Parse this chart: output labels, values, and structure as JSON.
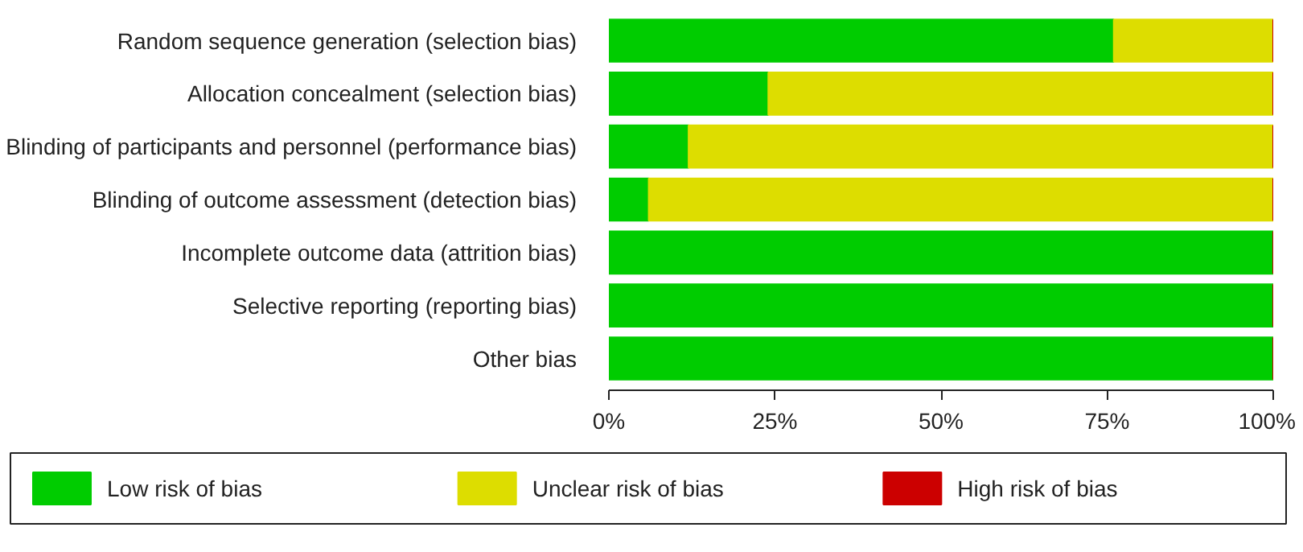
{
  "chart_data": {
    "type": "bar",
    "orientation": "horizontal",
    "stacked": true,
    "categories": [
      "Random sequence generation (selection bias)",
      "Allocation concealment (selection bias)",
      "Blinding of participants and personnel (performance bias)",
      "Blinding of outcome assessment (detection bias)",
      "Incomplete outcome data (attrition bias)",
      "Selective reporting (reporting bias)",
      "Other bias"
    ],
    "series": [
      {
        "name": "Low risk of bias",
        "color": "#00cc00",
        "values": [
          76,
          24,
          12,
          6,
          100,
          100,
          100
        ]
      },
      {
        "name": "Unclear risk of bias",
        "color": "#dddd00",
        "values": [
          24,
          76,
          88,
          94,
          0,
          0,
          0
        ]
      },
      {
        "name": "High risk of bias",
        "color": "#cc0000",
        "values": [
          0,
          0,
          0,
          0,
          0,
          0,
          0
        ]
      }
    ],
    "xlim": [
      0,
      100
    ],
    "xticks": [
      {
        "value": 0,
        "label": "0%"
      },
      {
        "value": 25,
        "label": "25%"
      },
      {
        "value": 50,
        "label": "50%"
      },
      {
        "value": 75,
        "label": "75%"
      },
      {
        "value": 100,
        "label": "100%"
      }
    ],
    "grid": false,
    "legend": "bottom"
  }
}
